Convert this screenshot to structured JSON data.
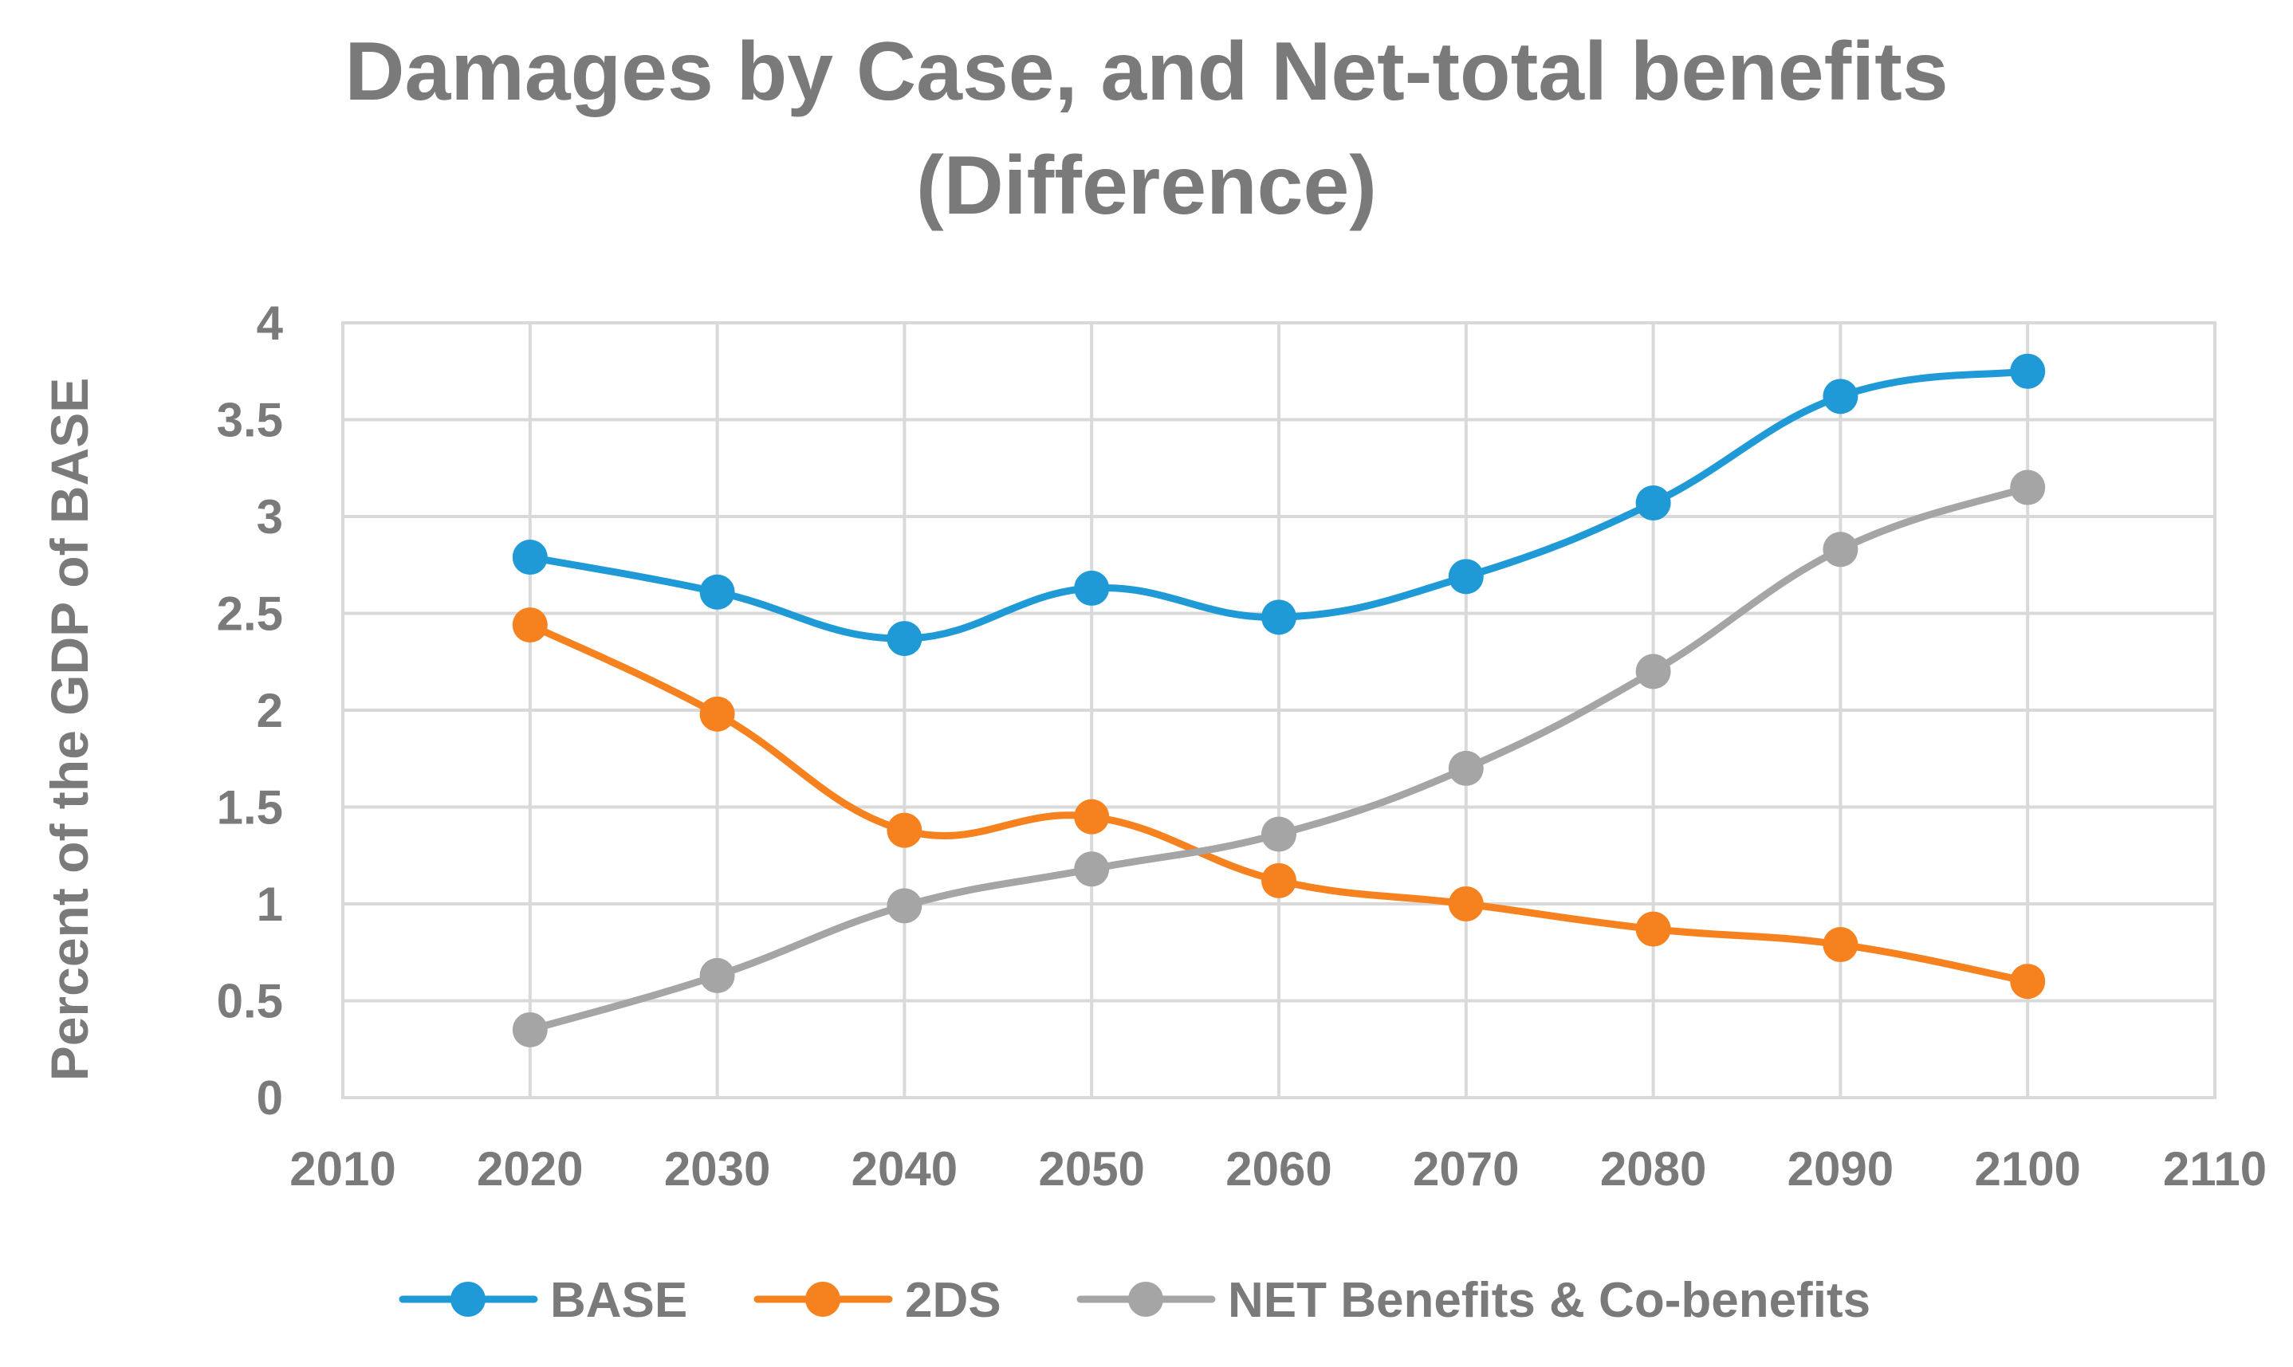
{
  "chart_data": {
    "type": "line",
    "title_lines": [
      "Damages by Case,  and Net-total benefits",
      "(Difference)"
    ],
    "xlabel": "",
    "ylabel": "Percent of the GDP of BASE",
    "xlim": [
      2010,
      2110
    ],
    "ylim": [
      0,
      4
    ],
    "x_ticks": [
      2010,
      2020,
      2030,
      2040,
      2050,
      2060,
      2070,
      2080,
      2090,
      2100,
      2110
    ],
    "x_tick_labels": [
      "2010",
      "2020",
      "2030",
      "2040",
      "2050",
      "2060",
      "2070",
      "2080",
      "2090",
      "2100",
      "2110"
    ],
    "y_ticks": [
      0,
      0.5,
      1,
      1.5,
      2,
      2.5,
      3,
      3.5,
      4
    ],
    "y_tick_labels": [
      "0",
      "0.5",
      "1",
      "1.5",
      "2",
      "2.5",
      "3",
      "3.5",
      "4"
    ],
    "grid": true,
    "legend_position": "bottom",
    "x": [
      2020,
      2030,
      2040,
      2050,
      2060,
      2070,
      2080,
      2090,
      2100
    ],
    "series": [
      {
        "name": "BASE",
        "color": "#1f9ad6",
        "values": [
          2.79,
          2.61,
          2.37,
          2.63,
          2.48,
          2.69,
          3.07,
          3.62,
          3.75
        ]
      },
      {
        "name": "2DS",
        "color": "#f5821f",
        "values": [
          2.44,
          1.98,
          1.38,
          1.45,
          1.12,
          1.0,
          0.87,
          0.79,
          0.6
        ]
      },
      {
        "name": "NET Benefits & Co-benefits",
        "color": "#a5a5a5",
        "values": [
          0.35,
          0.63,
          0.99,
          1.18,
          1.36,
          1.7,
          2.2,
          2.83,
          3.15
        ]
      }
    ]
  }
}
